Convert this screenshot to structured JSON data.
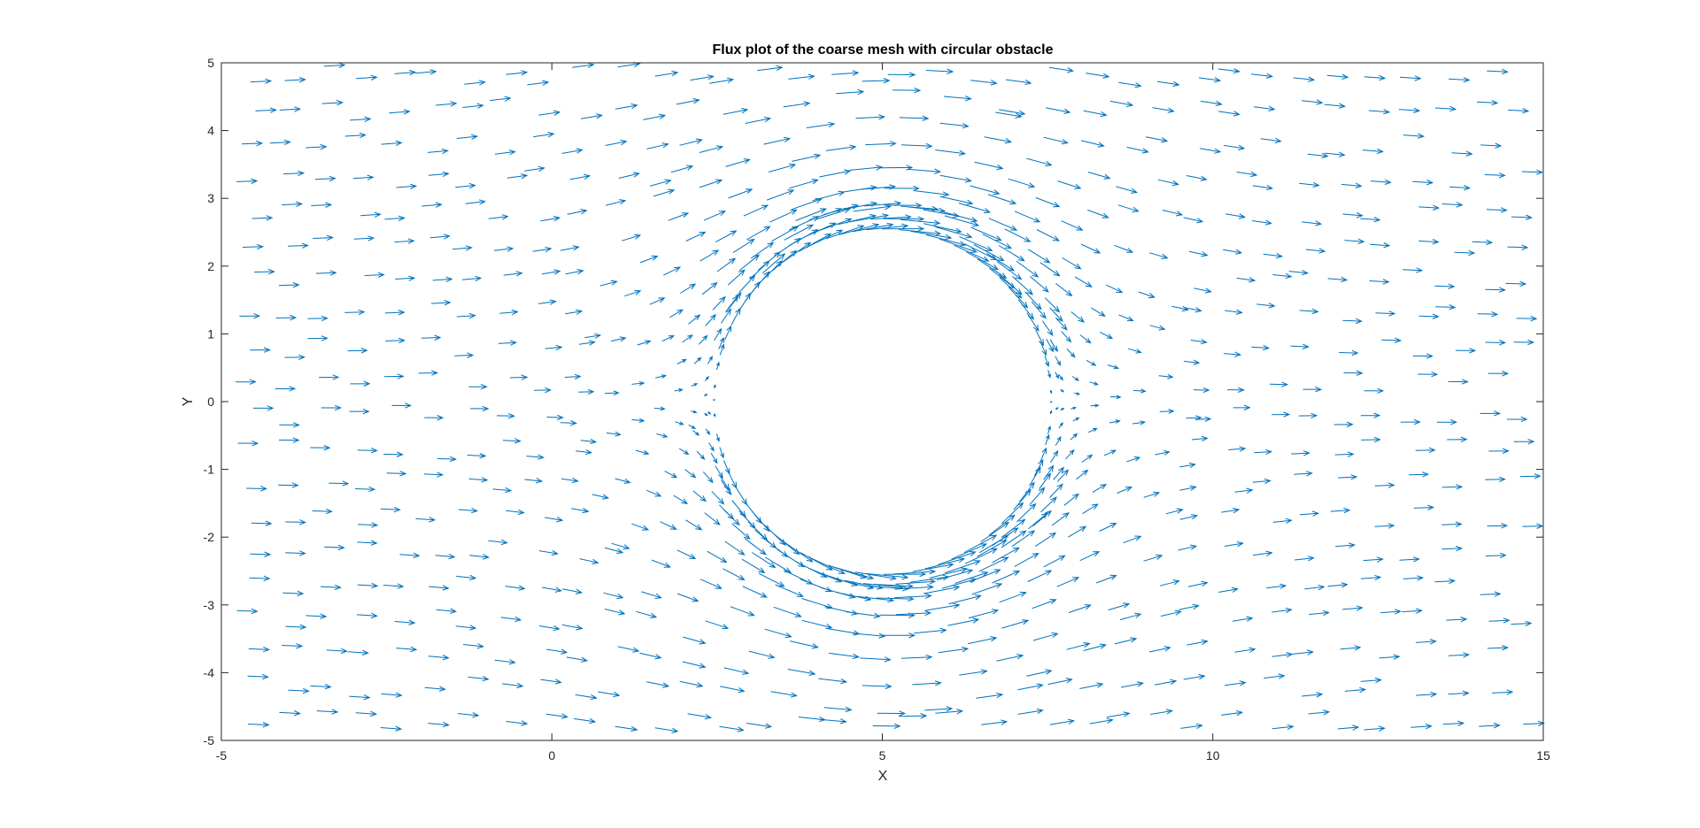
{
  "chart_data": {
    "type": "quiver",
    "title": "Flux plot of the coarse mesh with circular obstacle",
    "xlabel": "X",
    "ylabel": "Y",
    "xlim": [
      -5,
      15
    ],
    "ylim": [
      -5,
      5
    ],
    "xticks": [
      -5,
      0,
      5,
      10,
      15
    ],
    "yticks": [
      -5,
      -4,
      -3,
      -2,
      -1,
      0,
      1,
      2,
      3,
      4,
      5
    ],
    "grid": false,
    "obstacle": {
      "shape": "circle",
      "center": [
        5,
        0
      ],
      "radius": 2.5
    },
    "flow": {
      "uniform_speed": 1,
      "direction": "+x"
    },
    "arrow_color": "#0072BD",
    "axes_color": "#262626",
    "background": "#ffffff"
  }
}
